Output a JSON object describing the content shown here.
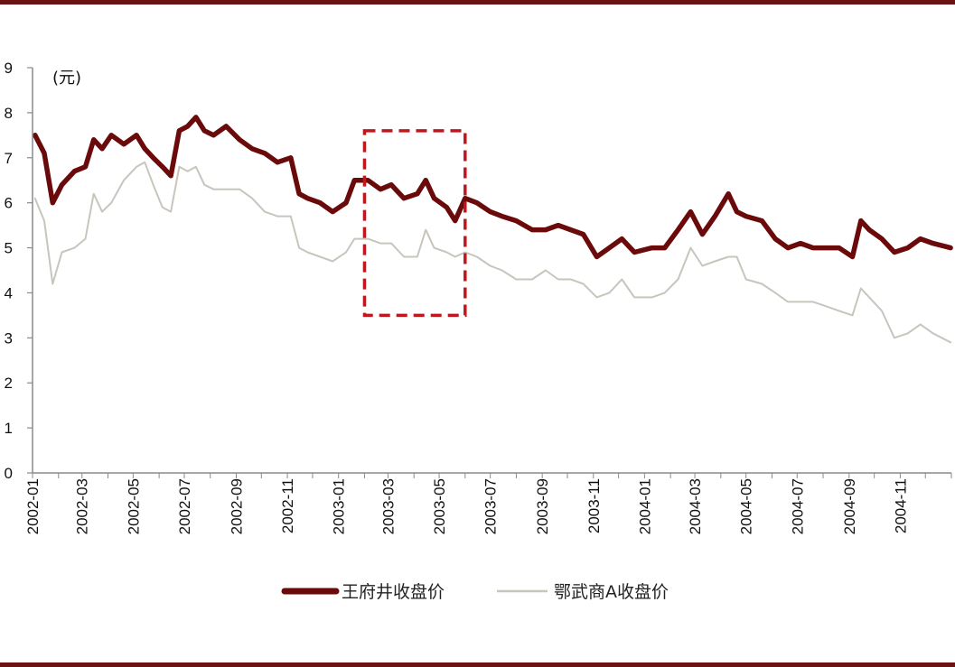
{
  "chart_data": {
    "type": "line",
    "unit_label": "(元)",
    "ylim": [
      0,
      9
    ],
    "y_ticks": [
      "0",
      "1",
      "2",
      "3",
      "4",
      "5",
      "6",
      "7",
      "8",
      "9"
    ],
    "x_ticks": [
      "2002-01",
      "2002-03",
      "2002-05",
      "2002-07",
      "2002-09",
      "2002-11",
      "2003-01",
      "2003-03",
      "2003-05",
      "2003-07",
      "2003-09",
      "2003-11",
      "2004-01",
      "2004-03",
      "2004-05",
      "2004-07",
      "2004-09",
      "2004-11"
    ],
    "x_range_months": [
      "2002-01",
      "2004-12"
    ],
    "grid": false,
    "legend_position": "bottom",
    "highlight_box": {
      "x_from": "2003-02",
      "x_to": "2003-06",
      "y_from": 3.5,
      "y_to": 7.6
    },
    "series": [
      {
        "name": "王府井收盘价",
        "color": "#6b0a0a",
        "points": [
          [
            "2002-01-04",
            7.5
          ],
          [
            "2002-01-15",
            7.1
          ],
          [
            "2002-01-25",
            6.0
          ],
          [
            "2002-02-05",
            6.4
          ],
          [
            "2002-02-20",
            6.7
          ],
          [
            "2002-03-05",
            6.8
          ],
          [
            "2002-03-15",
            7.4
          ],
          [
            "2002-03-25",
            7.2
          ],
          [
            "2002-04-05",
            7.5
          ],
          [
            "2002-04-20",
            7.3
          ],
          [
            "2002-05-05",
            7.5
          ],
          [
            "2002-05-15",
            7.2
          ],
          [
            "2002-05-25",
            7.0
          ],
          [
            "2002-06-05",
            6.8
          ],
          [
            "2002-06-15",
            6.6
          ],
          [
            "2002-06-25",
            7.6
          ],
          [
            "2002-07-05",
            7.7
          ],
          [
            "2002-07-15",
            7.9
          ],
          [
            "2002-07-25",
            7.6
          ],
          [
            "2002-08-05",
            7.5
          ],
          [
            "2002-08-20",
            7.7
          ],
          [
            "2002-09-05",
            7.4
          ],
          [
            "2002-09-20",
            7.2
          ],
          [
            "2002-10-05",
            7.1
          ],
          [
            "2002-10-20",
            6.9
          ],
          [
            "2002-11-05",
            7.0
          ],
          [
            "2002-11-15",
            6.2
          ],
          [
            "2002-11-25",
            6.1
          ],
          [
            "2002-12-10",
            6.0
          ],
          [
            "2002-12-25",
            5.8
          ],
          [
            "2003-01-10",
            6.0
          ],
          [
            "2003-01-20",
            6.5
          ],
          [
            "2003-02-05",
            6.5
          ],
          [
            "2003-02-20",
            6.3
          ],
          [
            "2003-03-05",
            6.4
          ],
          [
            "2003-03-20",
            6.1
          ],
          [
            "2003-04-05",
            6.2
          ],
          [
            "2003-04-15",
            6.5
          ],
          [
            "2003-04-25",
            6.1
          ],
          [
            "2003-05-10",
            5.9
          ],
          [
            "2003-05-20",
            5.6
          ],
          [
            "2003-06-01",
            6.1
          ],
          [
            "2003-06-15",
            6.0
          ],
          [
            "2003-07-01",
            5.8
          ],
          [
            "2003-07-15",
            5.7
          ],
          [
            "2003-08-01",
            5.6
          ],
          [
            "2003-08-20",
            5.4
          ],
          [
            "2003-09-05",
            5.4
          ],
          [
            "2003-09-20",
            5.5
          ],
          [
            "2003-10-05",
            5.4
          ],
          [
            "2003-10-20",
            5.3
          ],
          [
            "2003-11-05",
            4.8
          ],
          [
            "2003-11-20",
            5.0
          ],
          [
            "2003-12-05",
            5.2
          ],
          [
            "2003-12-20",
            4.9
          ],
          [
            "2004-01-10",
            5.0
          ],
          [
            "2004-01-25",
            5.0
          ],
          [
            "2004-02-10",
            5.4
          ],
          [
            "2004-02-25",
            5.8
          ],
          [
            "2004-03-10",
            5.3
          ],
          [
            "2004-03-25",
            5.7
          ],
          [
            "2004-04-10",
            6.2
          ],
          [
            "2004-04-20",
            5.8
          ],
          [
            "2004-05-01",
            5.7
          ],
          [
            "2004-05-20",
            5.6
          ],
          [
            "2004-06-05",
            5.2
          ],
          [
            "2004-06-20",
            5.0
          ],
          [
            "2004-07-05",
            5.1
          ],
          [
            "2004-07-20",
            5.0
          ],
          [
            "2004-08-05",
            5.0
          ],
          [
            "2004-08-20",
            5.0
          ],
          [
            "2004-09-05",
            4.8
          ],
          [
            "2004-09-15",
            5.6
          ],
          [
            "2004-09-25",
            5.4
          ],
          [
            "2004-10-10",
            5.2
          ],
          [
            "2004-10-25",
            4.9
          ],
          [
            "2004-11-10",
            5.0
          ],
          [
            "2004-11-25",
            5.2
          ],
          [
            "2004-12-10",
            5.1
          ],
          [
            "2004-12-31",
            5.0
          ]
        ]
      },
      {
        "name": "鄂武商A收盘价",
        "color": "#c8c5bd",
        "points": [
          [
            "2002-01-04",
            6.1
          ],
          [
            "2002-01-15",
            5.6
          ],
          [
            "2002-01-25",
            4.2
          ],
          [
            "2002-02-05",
            4.9
          ],
          [
            "2002-02-20",
            5.0
          ],
          [
            "2002-03-05",
            5.2
          ],
          [
            "2002-03-15",
            6.2
          ],
          [
            "2002-03-25",
            5.8
          ],
          [
            "2002-04-05",
            6.0
          ],
          [
            "2002-04-20",
            6.5
          ],
          [
            "2002-05-05",
            6.8
          ],
          [
            "2002-05-15",
            6.9
          ],
          [
            "2002-05-25",
            6.4
          ],
          [
            "2002-06-05",
            5.9
          ],
          [
            "2002-06-15",
            5.8
          ],
          [
            "2002-06-25",
            6.8
          ],
          [
            "2002-07-05",
            6.7
          ],
          [
            "2002-07-15",
            6.8
          ],
          [
            "2002-07-25",
            6.4
          ],
          [
            "2002-08-05",
            6.3
          ],
          [
            "2002-08-20",
            6.3
          ],
          [
            "2002-09-05",
            6.3
          ],
          [
            "2002-09-20",
            6.1
          ],
          [
            "2002-10-05",
            5.8
          ],
          [
            "2002-10-20",
            5.7
          ],
          [
            "2002-11-05",
            5.7
          ],
          [
            "2002-11-15",
            5.0
          ],
          [
            "2002-11-25",
            4.9
          ],
          [
            "2002-12-10",
            4.8
          ],
          [
            "2002-12-25",
            4.7
          ],
          [
            "2003-01-10",
            4.9
          ],
          [
            "2003-01-20",
            5.2
          ],
          [
            "2003-02-05",
            5.2
          ],
          [
            "2003-02-20",
            5.1
          ],
          [
            "2003-03-05",
            5.1
          ],
          [
            "2003-03-20",
            4.8
          ],
          [
            "2003-04-05",
            4.8
          ],
          [
            "2003-04-15",
            5.4
          ],
          [
            "2003-04-25",
            5.0
          ],
          [
            "2003-05-10",
            4.9
          ],
          [
            "2003-05-20",
            4.8
          ],
          [
            "2003-06-01",
            4.9
          ],
          [
            "2003-06-15",
            4.8
          ],
          [
            "2003-07-01",
            4.6
          ],
          [
            "2003-07-15",
            4.5
          ],
          [
            "2003-08-01",
            4.3
          ],
          [
            "2003-08-20",
            4.3
          ],
          [
            "2003-09-05",
            4.5
          ],
          [
            "2003-09-20",
            4.3
          ],
          [
            "2003-10-05",
            4.3
          ],
          [
            "2003-10-20",
            4.2
          ],
          [
            "2003-11-05",
            3.9
          ],
          [
            "2003-11-20",
            4.0
          ],
          [
            "2003-12-05",
            4.3
          ],
          [
            "2003-12-20",
            3.9
          ],
          [
            "2004-01-10",
            3.9
          ],
          [
            "2004-01-25",
            4.0
          ],
          [
            "2004-02-10",
            4.3
          ],
          [
            "2004-02-25",
            5.0
          ],
          [
            "2004-03-10",
            4.6
          ],
          [
            "2004-03-25",
            4.7
          ],
          [
            "2004-04-10",
            4.8
          ],
          [
            "2004-04-20",
            4.8
          ],
          [
            "2004-05-01",
            4.3
          ],
          [
            "2004-05-20",
            4.2
          ],
          [
            "2004-06-05",
            4.0
          ],
          [
            "2004-06-20",
            3.8
          ],
          [
            "2004-07-05",
            3.8
          ],
          [
            "2004-07-20",
            3.8
          ],
          [
            "2004-08-05",
            3.7
          ],
          [
            "2004-08-20",
            3.6
          ],
          [
            "2004-09-05",
            3.5
          ],
          [
            "2004-09-15",
            4.1
          ],
          [
            "2004-09-25",
            3.9
          ],
          [
            "2004-10-10",
            3.6
          ],
          [
            "2004-10-25",
            3.0
          ],
          [
            "2004-11-10",
            3.1
          ],
          [
            "2004-11-25",
            3.3
          ],
          [
            "2004-12-10",
            3.1
          ],
          [
            "2004-12-31",
            2.9
          ]
        ]
      }
    ]
  }
}
